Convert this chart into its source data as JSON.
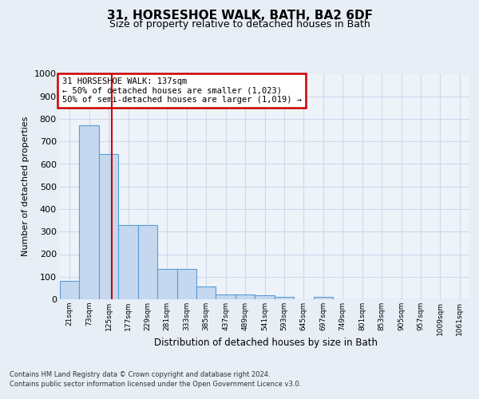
{
  "title": "31, HORSESHOE WALK, BATH, BA2 6DF",
  "subtitle": "Size of property relative to detached houses in Bath",
  "xlabel": "Distribution of detached houses by size in Bath",
  "ylabel": "Number of detached properties",
  "footer_line1": "Contains HM Land Registry data © Crown copyright and database right 2024.",
  "footer_line2": "Contains public sector information licensed under the Open Government Licence v3.0.",
  "annotation_line1": "31 HORSESHOE WALK: 137sqm",
  "annotation_line2": "← 50% of detached houses are smaller (1,023)",
  "annotation_line3": "50% of semi-detached houses are larger (1,019) →",
  "bar_color": "#c5d8ef",
  "bar_edge_color": "#5b9bd5",
  "red_line_color": "#cc0000",
  "grid_color": "#cdd8ea",
  "background_color": "#e8eef6",
  "plot_bg_color": "#eef3fa",
  "categories": [
    "21sqm",
    "73sqm",
    "125sqm",
    "177sqm",
    "229sqm",
    "281sqm",
    "333sqm",
    "385sqm",
    "437sqm",
    "489sqm",
    "541sqm",
    "593sqm",
    "645sqm",
    "697sqm",
    "749sqm",
    "801sqm",
    "853sqm",
    "905sqm",
    "957sqm",
    "1009sqm",
    "1061sqm"
  ],
  "values": [
    83,
    770,
    643,
    330,
    330,
    135,
    135,
    58,
    22,
    21,
    17,
    10,
    0,
    10,
    0,
    0,
    0,
    0,
    0,
    0,
    0
  ],
  "ylim": [
    0,
    1000
  ],
  "yticks": [
    0,
    100,
    200,
    300,
    400,
    500,
    600,
    700,
    800,
    900,
    1000
  ],
  "red_line_x": 2.15,
  "n_bars": 21
}
